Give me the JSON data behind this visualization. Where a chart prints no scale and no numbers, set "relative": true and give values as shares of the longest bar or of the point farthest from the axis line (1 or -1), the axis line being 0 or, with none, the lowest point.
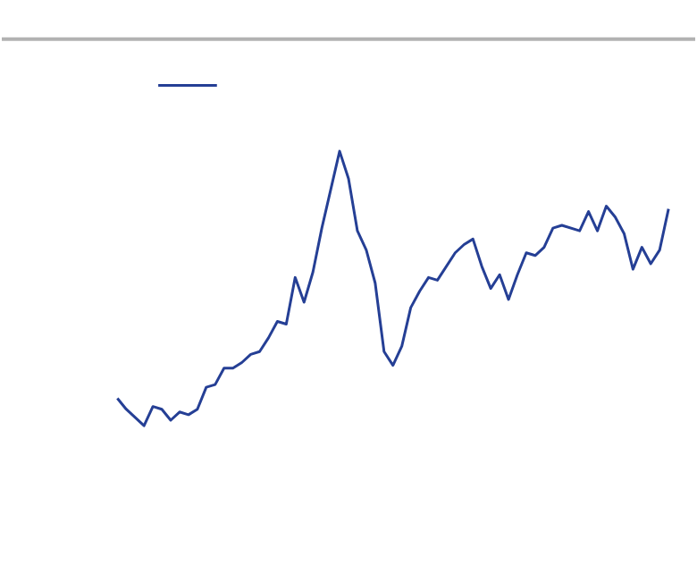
{
  "chart_data": {
    "type": "line",
    "relative": true,
    "line_style": "solid",
    "categories": [
      null,
      null,
      null,
      null,
      null,
      null,
      null,
      null,
      null,
      null,
      null,
      null,
      null,
      null,
      null,
      null,
      null,
      null,
      null,
      null,
      null,
      null,
      null,
      null,
      null,
      null,
      null,
      null,
      null,
      null,
      null,
      null,
      null,
      null,
      null,
      null,
      null,
      null,
      null,
      null,
      null,
      null,
      null,
      null,
      null,
      null,
      null,
      null,
      null,
      null,
      null,
      null,
      null,
      null,
      null,
      null,
      null,
      null,
      null,
      null,
      null,
      null,
      null
    ],
    "series": [
      {
        "color": "#253f95",
        "values": [
          0.1,
          0.06,
          0.03,
          0,
          0.07,
          0.06,
          0.02,
          0.05,
          0.04,
          0.06,
          0.14,
          0.15,
          0.21,
          0.21,
          0.23,
          0.26,
          0.27,
          0.32,
          0.38,
          0.37,
          0.54,
          0.45,
          0.56,
          0.72,
          0.86,
          1,
          0.9,
          0.71,
          0.64,
          0.52,
          0.27,
          0.22,
          0.29,
          0.43,
          0.49,
          0.54,
          0.53,
          0.58,
          0.63,
          0.66,
          0.68,
          0.58,
          0.5,
          0.55,
          0.46,
          0.55,
          0.63,
          0.62,
          0.65,
          0.72,
          0.73,
          0.72,
          0.71,
          0.78,
          0.71,
          0.8,
          0.76,
          0.7,
          0.57,
          0.65,
          0.59,
          0.64,
          0.79
        ]
      }
    ]
  }
}
